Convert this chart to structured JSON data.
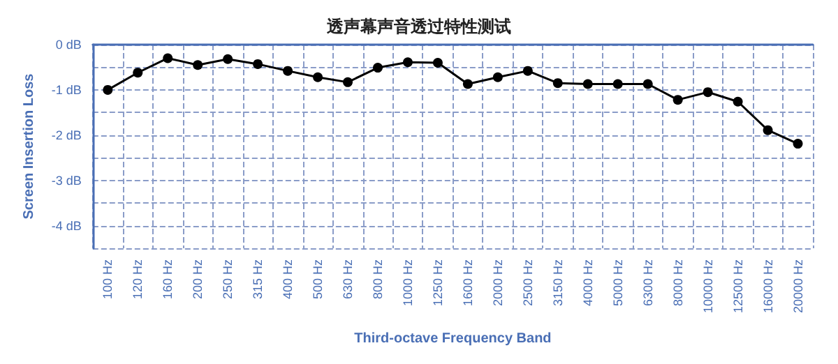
{
  "chart_data": {
    "type": "line",
    "title": "透声幕声音透过特性测试",
    "xlabel": "Third-octave Frequency Band",
    "ylabel": "Screen Insertion Loss",
    "categories": [
      "100 Hz",
      "120 Hz",
      "160 Hz",
      "200 Hz",
      "250 Hz",
      "315 Hz",
      "400 Hz",
      "500 Hz",
      "630 Hz",
      "800 Hz",
      "1000 Hz",
      "1250 Hz",
      "1600 Hz",
      "2000 Hz",
      "2500 Hz",
      "3150 Hz",
      "4000 Hz",
      "5000 Hz",
      "6300 Hz",
      "8000 Hz",
      "10000 Hz",
      "12500 Hz",
      "16000 Hz",
      "20000 Hz"
    ],
    "series": [
      {
        "color": "#000000",
        "values": [
          -1.0,
          -0.62,
          -0.3,
          -0.45,
          -0.32,
          -0.43,
          -0.58,
          -0.72,
          -0.83,
          -0.51,
          -0.39,
          -0.4,
          -0.87,
          -0.72,
          -0.58,
          -0.85,
          -0.87,
          -0.87,
          -0.87,
          -1.22,
          -1.05,
          -1.26,
          -1.89,
          -2.19
        ]
      }
    ],
    "ylim": [
      -4.5,
      0
    ],
    "yticks": [
      {
        "value": 0,
        "label": "0 dB"
      },
      {
        "value": -0.5,
        "label": null
      },
      {
        "value": -1,
        "label": "-1 dB"
      },
      {
        "value": -1.5,
        "label": null
      },
      {
        "value": -2,
        "label": "-2 dB"
      },
      {
        "value": -2.5,
        "label": null
      },
      {
        "value": -3,
        "label": "-3 dB"
      },
      {
        "value": -3.5,
        "label": null
      },
      {
        "value": -4,
        "label": "-4 dB"
      },
      {
        "value": -4.5,
        "label": null
      }
    ],
    "grid": true,
    "marker": "circle",
    "line_style": "solid"
  }
}
